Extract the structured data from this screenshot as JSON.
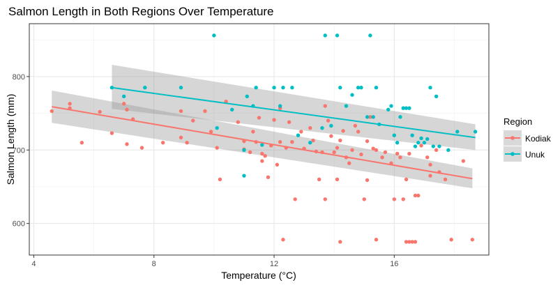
{
  "chart_data": {
    "type": "scatter",
    "title": "Salmon Length in Both Regions Over Temperature",
    "xlabel": "Temperature (°C)",
    "ylabel": "Salmon Length (mm)",
    "xlim": [
      3.85,
      19.15
    ],
    "ylim": [
      557,
      872
    ],
    "xticks": [
      4,
      8,
      12,
      16
    ],
    "yticks": [
      600,
      700,
      800
    ],
    "grid": true,
    "legend": {
      "title": "Region",
      "position": "right"
    },
    "series": [
      {
        "name": "Kodiak",
        "color": "#f8766d",
        "points": [
          [
            4.6,
            753
          ],
          [
            5.2,
            763
          ],
          [
            5.2,
            757
          ],
          [
            5.6,
            710
          ],
          [
            6.2,
            752
          ],
          [
            6.6,
            723
          ],
          [
            7.0,
            763
          ],
          [
            7.1,
            755
          ],
          [
            7.1,
            708
          ],
          [
            7.3,
            742
          ],
          [
            7.6,
            703
          ],
          [
            8.3,
            710
          ],
          [
            8.9,
            753
          ],
          [
            8.9,
            717
          ],
          [
            9.1,
            710
          ],
          [
            9.3,
            740
          ],
          [
            9.7,
            753
          ],
          [
            9.9,
            725
          ],
          [
            10.1,
            703
          ],
          [
            10.2,
            660
          ],
          [
            10.4,
            766
          ],
          [
            10.8,
            738
          ],
          [
            11.0,
            701
          ],
          [
            11.0,
            712
          ],
          [
            11.2,
            697
          ],
          [
            11.3,
            725
          ],
          [
            11.4,
            711
          ],
          [
            11.5,
            744
          ],
          [
            11.6,
            695
          ],
          [
            11.6,
            685
          ],
          [
            11.7,
            692
          ],
          [
            11.8,
            663
          ],
          [
            11.9,
            706
          ],
          [
            12.0,
            741
          ],
          [
            12.1,
            680
          ],
          [
            12.2,
            757
          ],
          [
            12.2,
            711
          ],
          [
            12.3,
            578
          ],
          [
            12.4,
            703
          ],
          [
            12.5,
            738
          ],
          [
            12.6,
            711
          ],
          [
            12.7,
            633
          ],
          [
            12.9,
            725
          ],
          [
            13.0,
            702
          ],
          [
            13.2,
            730
          ],
          [
            13.3,
            713
          ],
          [
            13.4,
            698
          ],
          [
            13.5,
            660
          ],
          [
            13.6,
            697
          ],
          [
            13.7,
            633
          ],
          [
            13.7,
            760
          ],
          [
            13.8,
            740
          ],
          [
            13.9,
            719
          ],
          [
            14.0,
            697
          ],
          [
            14.1,
            703
          ],
          [
            14.1,
            660
          ],
          [
            14.2,
            713
          ],
          [
            14.2,
            575
          ],
          [
            14.3,
            726
          ],
          [
            14.4,
            690
          ],
          [
            14.5,
            682
          ],
          [
            14.6,
            700
          ],
          [
            14.7,
            733
          ],
          [
            14.8,
            725
          ],
          [
            14.9,
            694
          ],
          [
            15.0,
            633
          ],
          [
            15.1,
            712
          ],
          [
            15.1,
            659
          ],
          [
            15.2,
            745
          ],
          [
            15.3,
            702
          ],
          [
            15.4,
            700
          ],
          [
            15.4,
            578
          ],
          [
            15.6,
            690
          ],
          [
            15.7,
            697
          ],
          [
            15.9,
            682
          ],
          [
            16.0,
            633
          ],
          [
            16.1,
            695
          ],
          [
            16.2,
            690
          ],
          [
            16.3,
            633
          ],
          [
            16.4,
            575
          ],
          [
            16.4,
            660
          ],
          [
            16.5,
            575
          ],
          [
            16.5,
            695
          ],
          [
            16.6,
            575
          ],
          [
            16.7,
            638
          ],
          [
            16.7,
            575
          ],
          [
            16.8,
            638
          ],
          [
            16.9,
            706
          ],
          [
            17.1,
            690
          ],
          [
            17.2,
            680
          ],
          [
            17.2,
            665
          ],
          [
            17.4,
            700
          ],
          [
            17.5,
            670
          ],
          [
            17.7,
            660
          ],
          [
            17.9,
            578
          ],
          [
            18.3,
            685
          ],
          [
            18.6,
            578
          ]
        ]
      },
      {
        "name": "Unuk",
        "color": "#00bfc4",
        "points": [
          [
            6.6,
            785
          ],
          [
            7.0,
            773
          ],
          [
            7.7,
            785
          ],
          [
            8.9,
            785
          ],
          [
            10.0,
            856
          ],
          [
            10.1,
            730
          ],
          [
            10.6,
            755
          ],
          [
            11.0,
            700
          ],
          [
            11.0,
            665
          ],
          [
            11.1,
            773
          ],
          [
            11.3,
            760
          ],
          [
            11.4,
            785
          ],
          [
            11.6,
            707
          ],
          [
            12.0,
            785
          ],
          [
            12.2,
            760
          ],
          [
            12.3,
            785
          ],
          [
            12.6,
            785
          ],
          [
            12.8,
            720
          ],
          [
            13.2,
            710
          ],
          [
            13.6,
            730
          ],
          [
            13.7,
            856
          ],
          [
            13.9,
            733
          ],
          [
            14.1,
            856
          ],
          [
            14.2,
            785
          ],
          [
            14.4,
            760
          ],
          [
            14.6,
            775
          ],
          [
            14.8,
            785
          ],
          [
            14.9,
            785
          ],
          [
            15.1,
            745
          ],
          [
            15.2,
            856
          ],
          [
            15.3,
            745
          ],
          [
            15.4,
            785
          ],
          [
            15.5,
            735
          ],
          [
            15.8,
            755
          ],
          [
            15.9,
            760
          ],
          [
            16.0,
            720
          ],
          [
            16.1,
            710
          ],
          [
            16.2,
            745
          ],
          [
            16.3,
            757
          ],
          [
            16.4,
            757
          ],
          [
            16.5,
            757
          ],
          [
            16.6,
            720
          ],
          [
            16.7,
            705
          ],
          [
            16.8,
            710
          ],
          [
            16.9,
            716
          ],
          [
            17.0,
            710
          ],
          [
            17.1,
            715
          ],
          [
            17.2,
            785
          ],
          [
            17.3,
            705
          ],
          [
            17.4,
            773
          ],
          [
            17.5,
            705
          ],
          [
            17.8,
            700
          ],
          [
            18.1,
            725
          ],
          [
            18.7,
            725
          ]
        ]
      }
    ],
    "trend_lines": [
      {
        "series": "Kodiak",
        "x": [
          4.6,
          18.6
        ],
        "y": [
          759,
          661
        ],
        "ci_start": [
          737,
          781
        ],
        "ci_end": [
          648,
          675
        ]
      },
      {
        "series": "Unuk",
        "x": [
          6.6,
          18.7
        ],
        "y": [
          785,
          717
        ],
        "ci_start": [
          756,
          816
        ],
        "ci_end": [
          700,
          735
        ]
      }
    ]
  }
}
